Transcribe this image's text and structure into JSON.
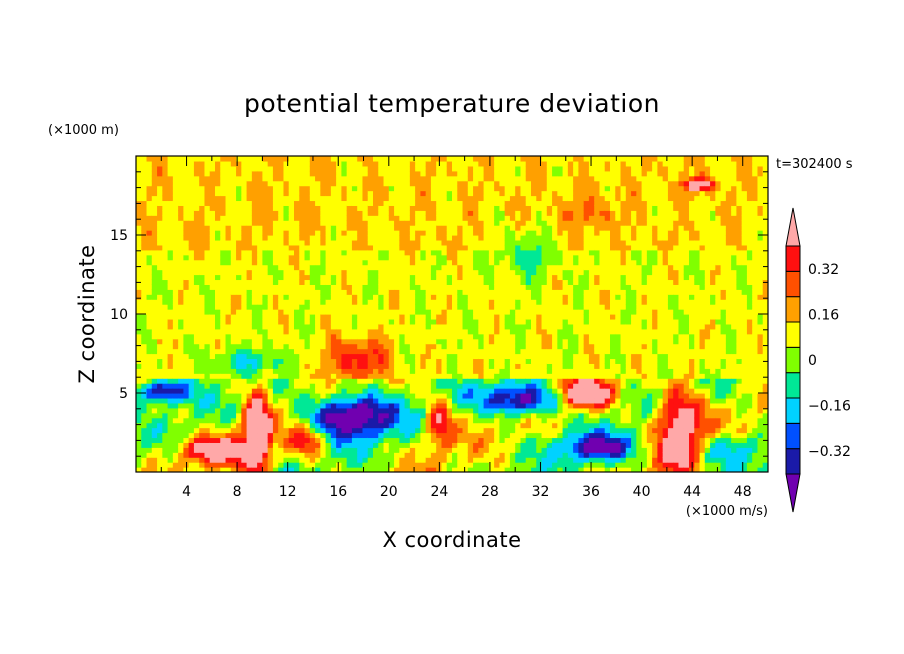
{
  "chart_data": {
    "type": "heatmap",
    "title": "potential temperature deviation",
    "xlabel": "X coordinate",
    "ylabel": "Z coordinate",
    "x_unit": "(×1000 m/s)",
    "y_unit": "(×1000 m)",
    "time_label": "t=302400 s",
    "xlim": [
      0,
      50
    ],
    "ylim": [
      0,
      20
    ],
    "x_ticks": [
      4,
      8,
      12,
      16,
      20,
      24,
      28,
      32,
      36,
      40,
      44,
      48
    ],
    "y_ticks": [
      5,
      10,
      15
    ],
    "colorbar": {
      "levels": [
        -0.4,
        -0.32,
        -0.24,
        -0.16,
        -0.08,
        0,
        0.08,
        0.16,
        0.24,
        0.32,
        0.4
      ],
      "labels": [
        "0.32",
        "0.16",
        "0",
        "−0.16",
        "−0.32"
      ],
      "label_values": [
        0.32,
        0.16,
        0,
        -0.16,
        -0.32
      ],
      "colors": [
        "#7000b0",
        "#1a1aa8",
        "#0050ff",
        "#00d2ff",
        "#00e896",
        "#80ff00",
        "#ffff00",
        "#ffa000",
        "#ff5000",
        "#ff1010",
        "#ffa8a8"
      ],
      "extend": "both"
    },
    "field_structure": {
      "boundary_layer_top_z": 6,
      "features": [
        {
          "name": "upper warm patch",
          "x": 36,
          "z": 16.5,
          "value": 0.16
        },
        {
          "name": "upper cool patch",
          "x": 31,
          "z": 14,
          "value": -0.1
        },
        {
          "name": "mid warm plume",
          "x": 17,
          "z": 7.5,
          "value": 0.28
        },
        {
          "name": "mid cool patch",
          "x": 8,
          "z": 7,
          "value": -0.12
        },
        {
          "name": "cold pool left",
          "x": 17,
          "z": 3.5,
          "value": -0.4
        },
        {
          "name": "cold pool right",
          "x": 30,
          "z": 4.5,
          "value": -0.4
        },
        {
          "name": "warm plume left",
          "x": 9.5,
          "z": 2.5,
          "value": 0.4
        },
        {
          "name": "warm plume right",
          "x": 41,
          "z": 4,
          "value": 0.4
        },
        {
          "name": "warm top right",
          "x": 44.5,
          "z": 18,
          "value": 0.4
        }
      ]
    }
  }
}
